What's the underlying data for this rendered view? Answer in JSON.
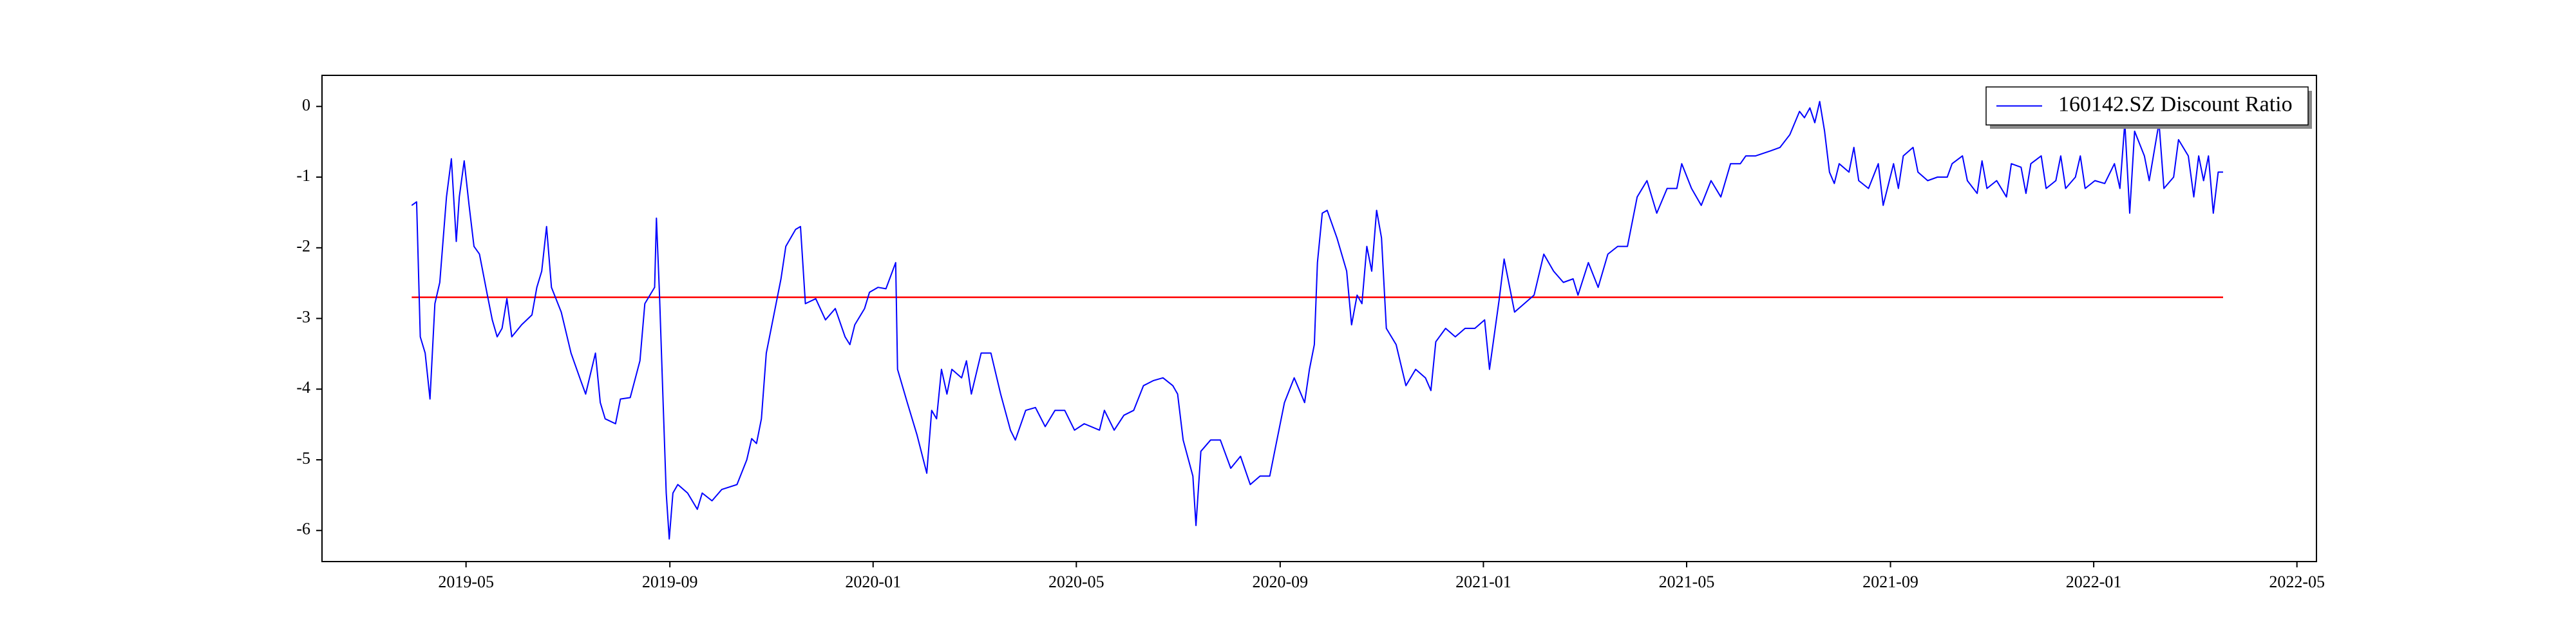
{
  "chart_data": {
    "type": "line",
    "x": [
      2019.244,
      2019.252,
      2019.258,
      2019.266,
      2019.274,
      2019.282,
      2019.29,
      2019.301,
      2019.309,
      2019.317,
      2019.322,
      2019.33,
      2019.338,
      2019.346,
      2019.355,
      2019.368,
      2019.376,
      2019.384,
      2019.392,
      2019.4,
      2019.408,
      2019.424,
      2019.441,
      2019.449,
      2019.457,
      2019.465,
      2019.473,
      2019.489,
      2019.505,
      2019.521,
      2019.529,
      2019.545,
      2019.553,
      2019.561,
      2019.578,
      2019.586,
      2019.602,
      2019.618,
      2019.626,
      2019.642,
      2019.645,
      2019.65,
      2019.656,
      2019.661,
      2019.666,
      2019.672,
      2019.68,
      2019.696,
      2019.712,
      2019.72,
      2019.736,
      2019.752,
      2019.777,
      2019.793,
      2019.801,
      2019.809,
      2019.817,
      2019.825,
      2019.833,
      2019.849,
      2019.857,
      2019.873,
      2019.881,
      2019.889,
      2019.906,
      2019.922,
      2019.938,
      2019.954,
      2019.962,
      2019.97,
      2019.986,
      2019.994,
      2020.008,
      2020.021,
      2020.037,
      2020.04,
      2020.056,
      2020.072,
      2020.088,
      2020.096,
      2020.104,
      2020.112,
      2020.121,
      2020.129,
      2020.145,
      2020.153,
      2020.161,
      2020.177,
      2020.193,
      2020.209,
      2020.225,
      2020.233,
      2020.25,
      2020.266,
      2020.282,
      2020.298,
      2020.314,
      2020.33,
      2020.346,
      2020.371,
      2020.379,
      2020.395,
      2020.411,
      2020.427,
      2020.443,
      2020.459,
      2020.475,
      2020.491,
      2020.499,
      2020.508,
      2020.524,
      2020.529,
      2020.537,
      2020.553,
      2020.569,
      2020.586,
      2020.602,
      2020.618,
      2020.634,
      2020.65,
      2020.658,
      2020.674,
      2020.69,
      2020.707,
      2020.715,
      2020.723,
      2020.728,
      2020.736,
      2020.744,
      2020.76,
      2020.776,
      2020.784,
      2020.793,
      2020.801,
      2020.809,
      2020.817,
      2020.825,
      2020.833,
      2020.841,
      2020.857,
      2020.873,
      2020.889,
      2020.905,
      2020.914,
      2020.922,
      2020.938,
      2020.954,
      2020.97,
      2020.986,
      2021.002,
      2021.01,
      2021.026,
      2021.034,
      2021.051,
      2021.067,
      2021.083,
      2021.099,
      2021.115,
      2021.131,
      2021.147,
      2021.155,
      2021.172,
      2021.188,
      2021.204,
      2021.22,
      2021.236,
      2021.252,
      2021.268,
      2021.284,
      2021.301,
      2021.317,
      2021.325,
      2021.341,
      2021.357,
      2021.373,
      2021.389,
      2021.405,
      2021.421,
      2021.43,
      2021.446,
      2021.47,
      2021.486,
      2021.502,
      2021.518,
      2021.526,
      2021.535,
      2021.543,
      2021.551,
      2021.559,
      2021.567,
      2021.575,
      2021.583,
      2021.599,
      2021.607,
      2021.615,
      2021.631,
      2021.647,
      2021.655,
      2021.672,
      2021.68,
      2021.688,
      2021.704,
      2021.712,
      2021.728,
      2021.744,
      2021.76,
      2021.768,
      2021.785,
      2021.793,
      2021.809,
      2021.817,
      2021.825,
      2021.841,
      2021.857,
      2021.865,
      2021.881,
      2021.889,
      2021.897,
      2021.914,
      2021.922,
      2021.938,
      2021.946,
      2021.954,
      2021.97,
      2021.978,
      2021.986,
      2022.002,
      2022.018,
      2022.034,
      2022.043,
      2022.051,
      2022.059,
      2022.067,
      2022.083,
      2022.091,
      2022.107,
      2022.115,
      2022.131,
      2022.139,
      2022.155,
      2022.164,
      2022.172,
      2022.18,
      2022.188,
      2022.196,
      2022.204,
      2022.212
    ],
    "series": [
      {
        "name": "160142.SZ Discount Ratio",
        "color": "#0000ff",
        "values": [
          -1.4,
          -1.35,
          -3.26,
          -3.49,
          -4.14,
          -2.79,
          -2.49,
          -1.28,
          -0.74,
          -1.91,
          -1.28,
          -0.77,
          -1.4,
          -1.98,
          -2.09,
          -2.67,
          -3.02,
          -3.26,
          -3.14,
          -2.72,
          -3.26,
          -3.09,
          -2.95,
          -2.56,
          -2.33,
          -1.7,
          -2.56,
          -2.91,
          -3.49,
          -3.88,
          -4.07,
          -3.49,
          -4.19,
          -4.42,
          -4.49,
          -4.14,
          -4.12,
          -3.6,
          -2.79,
          -2.56,
          -1.58,
          -2.67,
          -4.19,
          -5.47,
          -6.12,
          -5.47,
          -5.35,
          -5.47,
          -5.7,
          -5.47,
          -5.58,
          -5.42,
          -5.35,
          -5.0,
          -4.7,
          -4.77,
          -4.42,
          -3.49,
          -3.14,
          -2.44,
          -1.98,
          -1.74,
          -1.7,
          -2.79,
          -2.72,
          -3.02,
          -2.86,
          -3.26,
          -3.37,
          -3.09,
          -2.86,
          -2.63,
          -2.56,
          -2.58,
          -2.21,
          -3.72,
          -4.19,
          -4.65,
          -5.19,
          -4.3,
          -4.42,
          -3.72,
          -4.07,
          -3.72,
          -3.84,
          -3.6,
          -4.07,
          -3.49,
          -3.49,
          -4.07,
          -4.58,
          -4.72,
          -4.3,
          -4.26,
          -4.53,
          -4.3,
          -4.3,
          -4.58,
          -4.49,
          -4.58,
          -4.3,
          -4.58,
          -4.37,
          -4.3,
          -3.95,
          -3.88,
          -3.84,
          -3.95,
          -4.07,
          -4.72,
          -5.23,
          -5.93,
          -4.88,
          -4.72,
          -4.72,
          -5.12,
          -4.95,
          -5.35,
          -5.23,
          -5.23,
          -4.88,
          -4.19,
          -3.84,
          -4.19,
          -3.72,
          -3.37,
          -2.21,
          -1.51,
          -1.47,
          -1.86,
          -2.33,
          -3.09,
          -2.67,
          -2.79,
          -1.98,
          -2.33,
          -1.47,
          -1.86,
          -3.14,
          -3.37,
          -3.95,
          -3.72,
          -3.84,
          -4.02,
          -3.33,
          -3.14,
          -3.26,
          -3.14,
          -3.14,
          -3.02,
          -3.72,
          -2.72,
          -2.16,
          -2.91,
          -2.79,
          -2.67,
          -2.09,
          -2.33,
          -2.49,
          -2.44,
          -2.67,
          -2.21,
          -2.56,
          -2.09,
          -1.98,
          -1.98,
          -1.28,
          -1.05,
          -1.51,
          -1.16,
          -1.16,
          -0.81,
          -1.16,
          -1.4,
          -1.05,
          -1.28,
          -0.81,
          -0.81,
          -0.7,
          -0.7,
          -0.63,
          -0.58,
          -0.4,
          -0.07,
          -0.16,
          -0.02,
          -0.23,
          0.07,
          -0.35,
          -0.93,
          -1.09,
          -0.81,
          -0.93,
          -0.58,
          -1.05,
          -1.16,
          -0.81,
          -1.4,
          -0.81,
          -1.16,
          -0.7,
          -0.58,
          -0.93,
          -1.05,
          -1.0,
          -1.0,
          -0.81,
          -0.7,
          -1.05,
          -1.23,
          -0.77,
          -1.16,
          -1.05,
          -1.28,
          -0.81,
          -0.86,
          -1.23,
          -0.81,
          -0.7,
          -1.16,
          -1.05,
          -0.7,
          -1.16,
          -1.0,
          -0.7,
          -1.16,
          -1.05,
          -1.09,
          -0.81,
          -1.16,
          -0.23,
          -1.51,
          -0.35,
          -0.7,
          -1.05,
          -0.23,
          -1.16,
          -1.0,
          -0.47,
          -0.7,
          -1.28,
          -0.7,
          -1.05,
          -0.7,
          -1.51,
          -0.93,
          -0.93
        ]
      }
    ],
    "hlines": [
      {
        "y": -2.7,
        "xmin": 2019.244,
        "xmax": 2022.212,
        "color": "#ff0000"
      }
    ],
    "xlim": [
      2019.097,
      2022.365
    ],
    "xticks": [
      {
        "value": 2019.333,
        "label": "2019-05"
      },
      {
        "value": 2019.667,
        "label": "2019-09"
      },
      {
        "value": 2020.0,
        "label": "2020-01"
      },
      {
        "value": 2020.333,
        "label": "2020-05"
      },
      {
        "value": 2020.667,
        "label": "2020-09"
      },
      {
        "value": 2021.0,
        "label": "2021-01"
      },
      {
        "value": 2021.333,
        "label": "2021-05"
      },
      {
        "value": 2021.667,
        "label": "2021-09"
      },
      {
        "value": 2022.0,
        "label": "2022-01"
      },
      {
        "value": 2022.333,
        "label": "2022-05"
      }
    ],
    "ylim": [
      -6.44,
      0.44
    ],
    "yticks": [
      -6,
      -5,
      -4,
      -3,
      -2,
      -1,
      0
    ],
    "grid": false,
    "legend": "upper right"
  }
}
